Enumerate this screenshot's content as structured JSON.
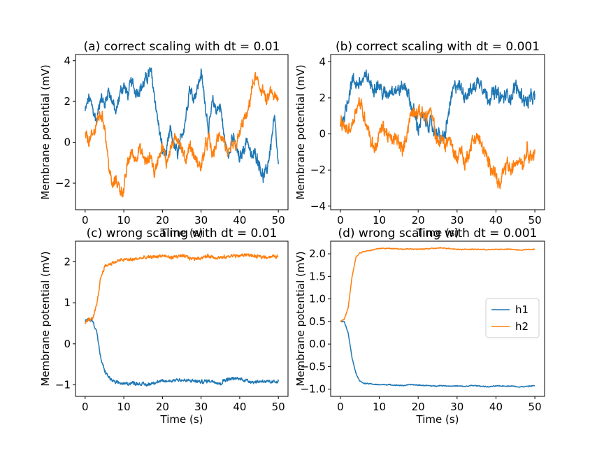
{
  "colors": {
    "h1": "#1f77b4",
    "h2": "#ff7f0e",
    "axes": "#000000",
    "legend_border": "#cccccc"
  },
  "chart_data": [
    {
      "type": "line",
      "title": "(a) correct scaling with dt = 0.01",
      "xlabel": "Time (s)",
      "ylabel": "Membrane potential (mV)",
      "xlim": [
        -2.5,
        52.5
      ],
      "ylim": [
        -3.3,
        4.3
      ],
      "xticks": [
        0,
        10,
        20,
        30,
        40,
        50
      ],
      "yticks": [
        -2,
        0,
        2,
        4
      ],
      "ytick_labels": [
        "−2",
        "0",
        "2",
        "4"
      ],
      "noise": 0.35,
      "series": [
        {
          "key": "h1",
          "x": [
            0,
            1,
            2,
            3,
            4,
            5,
            6,
            7,
            8,
            9,
            10,
            11,
            12,
            13,
            14,
            15,
            16,
            17,
            18,
            19,
            20,
            21,
            22,
            23,
            24,
            25,
            26,
            27,
            28,
            29,
            30,
            31,
            32,
            33,
            34,
            35,
            36,
            37,
            38,
            39,
            40,
            41,
            42,
            43,
            44,
            45,
            46,
            47,
            48,
            49,
            50
          ],
          "values": [
            1.5,
            2.2,
            1.6,
            1.0,
            2.3,
            1.8,
            2.6,
            2.0,
            1.4,
            2.4,
            2.8,
            2.3,
            3.0,
            2.5,
            2.6,
            2.8,
            3.2,
            3.5,
            2.2,
            0.8,
            -0.4,
            -0.6,
            0.6,
            -0.2,
            -0.6,
            0.3,
            1.2,
            2.7,
            2.2,
            2.6,
            3.4,
            2.0,
            0.6,
            2.0,
            1.6,
            1.8,
            0.2,
            -0.7,
            0.3,
            -0.2,
            -0.9,
            -0.3,
            0.2,
            -0.8,
            -0.5,
            -1.0,
            -1.7,
            -1.4,
            -0.2,
            1.2,
            -1.2
          ]
        },
        {
          "key": "h2",
          "x": [
            0,
            1,
            2,
            3,
            4,
            5,
            6,
            7,
            8,
            9,
            10,
            11,
            12,
            13,
            14,
            15,
            16,
            17,
            18,
            19,
            20,
            21,
            22,
            23,
            24,
            25,
            26,
            27,
            28,
            29,
            30,
            31,
            32,
            33,
            34,
            35,
            36,
            37,
            38,
            39,
            40,
            41,
            42,
            43,
            44,
            45,
            46,
            47,
            48,
            49,
            50
          ],
          "values": [
            0.3,
            0.1,
            0.3,
            1.0,
            1.4,
            0.9,
            -1.0,
            -2.2,
            -1.8,
            -2.3,
            -2.4,
            -1.0,
            -0.5,
            -0.8,
            -0.3,
            -0.7,
            -1.0,
            -0.6,
            -1.6,
            -0.6,
            -0.2,
            -1.0,
            -0.3,
            0.0,
            0.3,
            -0.3,
            -0.9,
            -0.1,
            -0.6,
            -1.0,
            -1.2,
            -0.3,
            0.2,
            -0.7,
            0.0,
            0.4,
            0.1,
            -0.8,
            -0.2,
            -0.2,
            0.4,
            1.1,
            1.3,
            2.5,
            3.2,
            2.7,
            2.6,
            1.9,
            2.5,
            2.2,
            2.0
          ]
        }
      ]
    },
    {
      "type": "line",
      "title": "(b) correct scaling with dt = 0.001",
      "xlabel": "Time (s)",
      "ylabel": "Membrane potential (mV)",
      "xlim": [
        -2.5,
        52.5
      ],
      "ylim": [
        -4.2,
        4.4
      ],
      "xticks": [
        0,
        10,
        20,
        30,
        40,
        50
      ],
      "yticks": [
        -4,
        -2,
        0,
        2,
        4
      ],
      "ytick_labels": [
        "−4",
        "−2",
        "0",
        "2",
        "4"
      ],
      "noise": 0.45,
      "series": [
        {
          "key": "h1",
          "x": [
            0,
            1,
            2,
            3,
            4,
            5,
            6,
            7,
            8,
            9,
            10,
            11,
            12,
            13,
            14,
            15,
            16,
            17,
            18,
            19,
            20,
            21,
            22,
            23,
            24,
            25,
            26,
            27,
            28,
            29,
            30,
            31,
            32,
            33,
            34,
            35,
            36,
            37,
            38,
            39,
            40,
            41,
            42,
            43,
            44,
            45,
            46,
            47,
            48,
            49,
            50
          ],
          "values": [
            0.5,
            1.0,
            2.0,
            3.0,
            2.8,
            2.8,
            3.0,
            3.2,
            2.6,
            2.7,
            2.7,
            2.2,
            2.2,
            2.5,
            2.5,
            2.4,
            2.6,
            2.6,
            1.7,
            1.1,
            0.3,
            1.0,
            0.6,
            0.6,
            0.2,
            0.1,
            -0.4,
            0.0,
            1.4,
            2.4,
            2.8,
            2.5,
            2.2,
            2.3,
            2.5,
            2.8,
            3.0,
            2.4,
            2.0,
            2.2,
            2.3,
            2.0,
            2.0,
            2.2,
            2.0,
            2.7,
            2.3,
            2.0,
            1.7,
            2.0,
            2.0
          ]
        },
        {
          "key": "h2",
          "x": [
            0,
            1,
            2,
            3,
            4,
            5,
            6,
            7,
            8,
            9,
            10,
            11,
            12,
            13,
            14,
            15,
            16,
            17,
            18,
            19,
            20,
            21,
            22,
            23,
            24,
            25,
            26,
            27,
            28,
            29,
            30,
            31,
            32,
            33,
            34,
            35,
            36,
            37,
            38,
            39,
            40,
            41,
            42,
            43,
            44,
            45,
            46,
            47,
            48,
            49,
            50
          ],
          "values": [
            0.6,
            0.4,
            0.2,
            0.5,
            1.4,
            1.8,
            1.0,
            0.5,
            -0.5,
            -0.8,
            0.0,
            0.4,
            0.0,
            -0.4,
            -0.3,
            -0.4,
            -1.0,
            0.0,
            1.0,
            1.4,
            1.1,
            1.2,
            0.9,
            1.3,
            0.5,
            -0.5,
            -0.3,
            -0.6,
            -0.2,
            -1.0,
            -1.3,
            -0.8,
            -1.7,
            -1.0,
            -0.4,
            -0.1,
            -0.5,
            -1.0,
            -1.6,
            -1.8,
            -2.3,
            -3.0,
            -2.1,
            -1.6,
            -2.2,
            -1.5,
            -1.3,
            -1.6,
            -0.8,
            -1.2,
            -1.1
          ]
        }
      ]
    },
    {
      "type": "line",
      "title": "(c) wrong scaling with dt = 0.01",
      "xlabel": "Time (s)",
      "ylabel": "Membrane potential (mV)",
      "xlim": [
        -2.5,
        52.5
      ],
      "ylim": [
        -1.28,
        2.5
      ],
      "xticks": [
        0,
        10,
        20,
        30,
        40,
        50
      ],
      "yticks": [
        -1,
        0,
        1,
        2
      ],
      "ytick_labels": [
        "−1",
        "0",
        "1",
        "2"
      ],
      "noise": 0.05,
      "series": [
        {
          "key": "h1",
          "x": [
            0,
            1,
            2,
            3,
            4,
            5,
            6,
            7,
            8,
            9,
            10,
            12,
            14,
            16,
            18,
            20,
            22,
            24,
            26,
            28,
            30,
            32,
            34,
            35,
            36,
            38,
            40,
            42,
            44,
            46,
            48,
            50
          ],
          "values": [
            0.55,
            0.6,
            0.55,
            0.3,
            -0.35,
            -0.65,
            -0.8,
            -0.9,
            -0.95,
            -0.95,
            -0.98,
            -0.95,
            -0.97,
            -1.0,
            -0.93,
            -0.92,
            -0.9,
            -0.87,
            -0.9,
            -0.9,
            -0.93,
            -0.9,
            -0.92,
            -0.98,
            -0.88,
            -0.85,
            -0.85,
            -0.9,
            -0.93,
            -0.9,
            -0.95,
            -0.9
          ]
        },
        {
          "key": "h2",
          "x": [
            0,
            1,
            2,
            3,
            4,
            5,
            6,
            7,
            8,
            9,
            10,
            12,
            14,
            16,
            18,
            20,
            22,
            24,
            26,
            28,
            30,
            32,
            34,
            36,
            38,
            40,
            42,
            44,
            46,
            48,
            50
          ],
          "values": [
            0.5,
            0.6,
            0.6,
            0.95,
            1.6,
            1.88,
            1.93,
            1.97,
            2.0,
            2.03,
            2.05,
            2.05,
            2.08,
            2.1,
            2.12,
            2.15,
            2.1,
            2.13,
            2.12,
            2.07,
            2.1,
            2.14,
            2.1,
            2.1,
            2.15,
            2.14,
            2.18,
            2.12,
            2.12,
            2.12,
            2.13
          ]
        }
      ]
    },
    {
      "type": "line",
      "title": "(d) wrong scaling with dt = 0.001",
      "xlabel": "Time (s)",
      "ylabel": "Membrane potential (mV)",
      "xlim": [
        -2.5,
        52.5
      ],
      "ylim": [
        -1.16,
        2.28
      ],
      "xticks": [
        0,
        10,
        20,
        30,
        40,
        50
      ],
      "yticks": [
        -1.0,
        -0.5,
        0.0,
        0.5,
        1.0,
        1.5,
        2.0
      ],
      "ytick_labels": [
        "−1.0",
        "−0.5",
        "0.0",
        "0.5",
        "1.0",
        "1.5",
        "2.0"
      ],
      "noise": 0.012,
      "legend": {
        "position": "center-right",
        "entries": [
          {
            "key": "h1",
            "label": "h1"
          },
          {
            "key": "h2",
            "label": "h2"
          }
        ]
      },
      "series": [
        {
          "key": "h1",
          "label": "h1",
          "x": [
            0,
            1,
            2,
            3,
            4,
            5,
            6,
            7,
            8,
            9,
            10,
            12,
            14,
            16,
            18,
            20,
            22,
            24,
            26,
            28,
            30,
            32,
            34,
            36,
            38,
            40,
            42,
            44,
            46,
            48,
            50
          ],
          "values": [
            0.5,
            0.5,
            0.25,
            -0.3,
            -0.65,
            -0.82,
            -0.87,
            -0.88,
            -0.88,
            -0.9,
            -0.9,
            -0.9,
            -0.91,
            -0.92,
            -0.9,
            -0.91,
            -0.92,
            -0.93,
            -0.92,
            -0.93,
            -0.93,
            -0.94,
            -0.92,
            -0.93,
            -0.95,
            -0.93,
            -0.93,
            -0.93,
            -0.95,
            -0.94,
            -0.92
          ]
        },
        {
          "key": "h2",
          "label": "h2",
          "x": [
            0,
            1,
            2,
            3,
            4,
            5,
            6,
            7,
            8,
            9,
            10,
            12,
            14,
            16,
            18,
            20,
            22,
            24,
            26,
            28,
            30,
            32,
            34,
            36,
            38,
            40,
            42,
            44,
            46,
            48,
            50
          ],
          "values": [
            0.5,
            0.55,
            0.8,
            1.5,
            1.92,
            2.02,
            2.05,
            2.07,
            2.08,
            2.1,
            2.12,
            2.12,
            2.12,
            2.1,
            2.11,
            2.1,
            2.11,
            2.12,
            2.13,
            2.12,
            2.1,
            2.1,
            2.1,
            2.1,
            2.09,
            2.1,
            2.1,
            2.1,
            2.08,
            2.1,
            2.1
          ]
        }
      ]
    }
  ]
}
